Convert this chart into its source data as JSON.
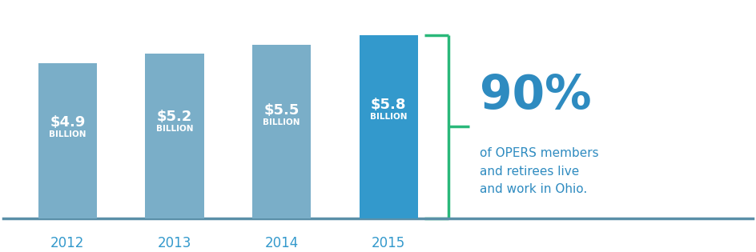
{
  "years": [
    "2012",
    "2013",
    "2014",
    "2015"
  ],
  "values": [
    4.9,
    5.2,
    5.5,
    5.8
  ],
  "labels_dollar": [
    "$4.9",
    "$5.2",
    "$5.5",
    "$5.8"
  ],
  "bar_colors": [
    "#7aaec8",
    "#7aaec8",
    "#7aaec8",
    "#3399cc"
  ],
  "bar_color_light": "#7aaec8",
  "bar_color_dark": "#3399cc",
  "axis_line_color": "#5a8fa8",
  "year_label_color": "#3399cc",
  "text_in_bar_color": "#ffffff",
  "bracket_color": "#2ab87a",
  "pct_text_color": "#2e8bc0",
  "annotation_color": "#2e8bc0",
  "background_color": "#ffffff",
  "ylim": [
    0,
    6.8
  ],
  "bar_width": 0.55,
  "annotation_90": "90%",
  "annotation_sub": "of OPERS members\nand retirees live\nand work in Ohio."
}
